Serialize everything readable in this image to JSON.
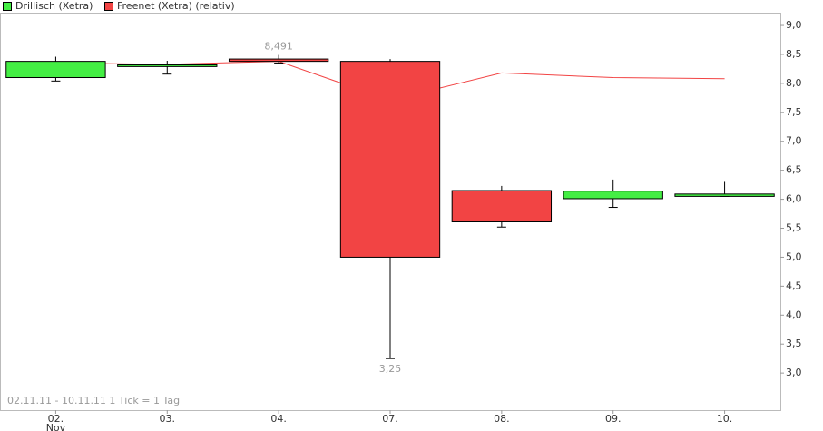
{
  "chart_data": {
    "type": "candlestick",
    "categories": [
      "02.",
      "03.",
      "04.",
      "07.",
      "08.",
      "09.",
      "10."
    ],
    "x_sublabel": "Nov",
    "footnote": "02.11.11 - 10.11.11   1 Tick = 1 Tag",
    "series": [
      {
        "name": "Drillisch (Xetra)",
        "color": "#44ee44",
        "down_color": "#f24444",
        "open": [
          8.1,
          8.29,
          8.42,
          8.38,
          6.15,
          6.01,
          6.05
        ],
        "high": [
          8.46,
          8.39,
          8.491,
          8.42,
          6.23,
          6.34,
          6.3
        ],
        "low": [
          8.04,
          8.16,
          8.35,
          3.25,
          5.52,
          5.86,
          6.05
        ],
        "close": [
          8.38,
          8.32,
          8.38,
          5.0,
          5.61,
          6.14,
          6.09
        ],
        "high_labels": [
          null,
          null,
          "8,491",
          null,
          null,
          null,
          null
        ],
        "low_labels": [
          null,
          null,
          null,
          "3,25",
          null,
          null,
          null
        ]
      },
      {
        "name": "Freenet (Xetra) (relativ)",
        "color": "#f24444",
        "type": "line",
        "values": [
          8.35,
          8.33,
          8.38,
          7.71,
          8.18,
          8.1,
          8.08
        ]
      }
    ],
    "ylim": [
      2.36,
      9.22
    ],
    "yticks": [
      {
        "value": 9.0,
        "label": "9,0"
      },
      {
        "value": 8.5,
        "label": "8,5"
      },
      {
        "value": 8.0,
        "label": "8,0"
      },
      {
        "value": 7.5,
        "label": "7,5"
      },
      {
        "value": 7.0,
        "label": "7,0"
      },
      {
        "value": 6.5,
        "label": "6,5"
      },
      {
        "value": 6.0,
        "label": "6,0"
      },
      {
        "value": 5.5,
        "label": "5,5"
      },
      {
        "value": 5.0,
        "label": "5,0"
      },
      {
        "value": 4.5,
        "label": "4,5"
      },
      {
        "value": 4.0,
        "label": "4,0"
      },
      {
        "value": 3.5,
        "label": "3,5"
      },
      {
        "value": 3.0,
        "label": "3,0"
      }
    ]
  }
}
